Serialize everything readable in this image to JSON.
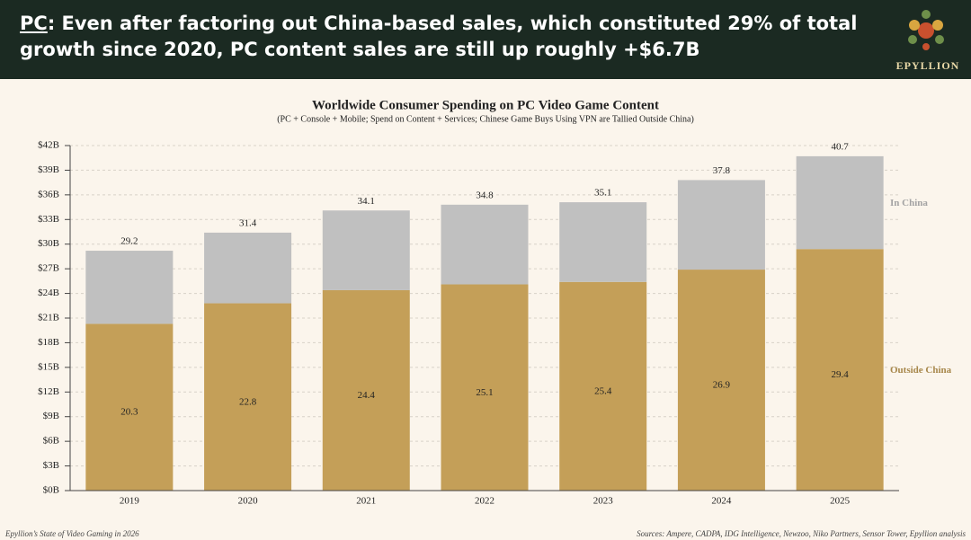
{
  "header": {
    "lead": "PC",
    "text": ": Even after factoring out China-based sales, which constituted 29% of total growth since 2020, PC content sales are still up roughly +$6.7B",
    "logo": "EPYLLION"
  },
  "chart_data": {
    "type": "stacked_bar",
    "title": "Worldwide Consumer Spending on PC Video Game Content",
    "subtitle": "(PC + Console + Mobile; Spend on Content + Services; Chinese Game Buys Using VPN are Tallied Outside China)",
    "categories": [
      "2019",
      "2020",
      "2021",
      "2022",
      "2023",
      "2024",
      "2025"
    ],
    "series": [
      {
        "name": "Outside China",
        "color": "#c49f58",
        "values": [
          20.3,
          22.8,
          24.4,
          25.1,
          25.4,
          26.9,
          29.4
        ]
      },
      {
        "name": "In China",
        "color": "#c0c0c0",
        "values": [
          8.9,
          8.6,
          9.7,
          9.7,
          9.7,
          10.9,
          11.3
        ]
      }
    ],
    "totals": [
      29.2,
      31.4,
      34.1,
      34.8,
      35.1,
      37.8,
      40.7
    ],
    "ylim": [
      0,
      42
    ],
    "yticks": [
      {
        "value": 0,
        "label": "$0B"
      },
      {
        "value": 3,
        "label": "$3B"
      },
      {
        "value": 6,
        "label": "$6B"
      },
      {
        "value": 9,
        "label": "$9B"
      },
      {
        "value": 12,
        "label": "$12B"
      },
      {
        "value": 15,
        "label": "$15B"
      },
      {
        "value": 18,
        "label": "$18B"
      },
      {
        "value": 21,
        "label": "$21B"
      },
      {
        "value": 24,
        "label": "$24B"
      },
      {
        "value": 27,
        "label": "$27B"
      },
      {
        "value": 30,
        "label": "$30B"
      },
      {
        "value": 33,
        "label": "$33B"
      },
      {
        "value": 36,
        "label": "$36B"
      },
      {
        "value": 39,
        "label": "$39B"
      },
      {
        "value": 42,
        "label": "$42B"
      }
    ],
    "grid": true
  },
  "footer": {
    "left": "Epyllion’s State of Video Gaming in 2026",
    "right": "Sources: Ampere, CADPA, IDG Intelligence, Newzoo, Niko Partners, Sensor Tower, Epyllion analysis"
  }
}
